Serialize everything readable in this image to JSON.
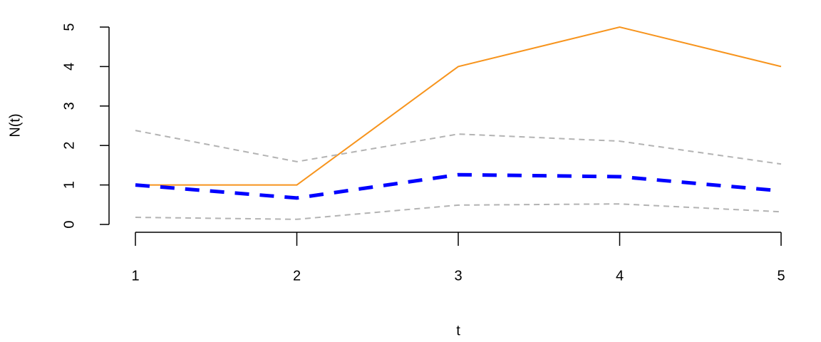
{
  "chart_data": {
    "type": "line",
    "x_label": "t",
    "y_label": "N(t)",
    "x": [
      1,
      2,
      3,
      4,
      5
    ],
    "series": [
      {
        "color": "#f7941d",
        "dash": "solid",
        "width": 2,
        "values": [
          1,
          1,
          4,
          5,
          4
        ]
      },
      {
        "color": "#b3b3b3",
        "dash": "dashed",
        "width": 2,
        "values": [
          2.38,
          1.59,
          2.29,
          2.11,
          1.53
        ]
      },
      {
        "color": "#b3b3b3",
        "dash": "dashed",
        "width": 2,
        "values": [
          0.18,
          0.13,
          0.49,
          0.52,
          0.32
        ]
      },
      {
        "color": "#0000ff",
        "dash": "dashed",
        "width": 5,
        "values": [
          1,
          0.67,
          1.26,
          1.21,
          0.85
        ]
      }
    ],
    "xlim": [
      1,
      5
    ],
    "xticks": [
      1,
      2,
      3,
      4,
      5
    ],
    "ylim": [
      0,
      5
    ],
    "yticks": [
      0,
      1,
      2,
      3,
      4,
      5
    ],
    "grid": false
  }
}
